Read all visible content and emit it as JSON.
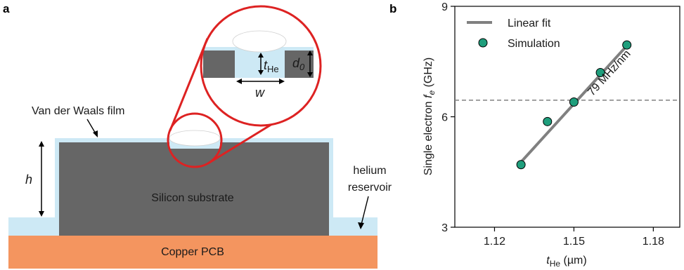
{
  "panel_a": {
    "letter": "a",
    "labels": {
      "vdw_film": "Van der Waals film",
      "h": "h",
      "silicon": "Silicon substrate",
      "copper": "Copper PCB",
      "helium_line1": "helium",
      "helium_line2": "reservoir",
      "t_he_main": "t",
      "t_he_sub": "He",
      "d0_main": "d",
      "d0_sub": "0",
      "w": "w"
    },
    "colors": {
      "silicon": "#666666",
      "copper": "#f4955f",
      "helium": "#cde9f5",
      "zoom_circle": "#dd2222"
    }
  },
  "panel_b": {
    "letter": "b",
    "colors": {
      "fit": "#808080",
      "points": "#1f9e7c",
      "dashed": "#808080"
    }
  },
  "chart_data": {
    "type": "scatter",
    "xlabel_main": "t",
    "xlabel_sub": "He",
    "xlabel_unit": " (µm)",
    "ylabel_main": "Single electron ",
    "ylabel_f": "f",
    "ylabel_sub": "e",
    "ylabel_unit": " (GHz)",
    "xlim": [
      1.105,
      1.19
    ],
    "ylim": [
      3,
      9
    ],
    "xticks": [
      1.12,
      1.15,
      1.18
    ],
    "xtick_labels": [
      "1.12",
      "1.15",
      "1.18"
    ],
    "yticks": [
      3,
      6,
      9
    ],
    "ytick_labels": [
      "3",
      "6",
      "9"
    ],
    "legend": [
      "Linear fit",
      "Simulation"
    ],
    "legend_position": "top-left",
    "annotation": "79 MHz/nm",
    "reference_line_y": 6.45,
    "series": [
      {
        "name": "Simulation",
        "x": [
          1.13,
          1.14,
          1.15,
          1.16,
          1.17
        ],
        "y": [
          4.7,
          5.87,
          6.4,
          7.2,
          7.95
        ]
      },
      {
        "name": "Linear fit",
        "x": [
          1.13,
          1.17
        ],
        "y": [
          4.77,
          7.93
        ]
      }
    ]
  }
}
